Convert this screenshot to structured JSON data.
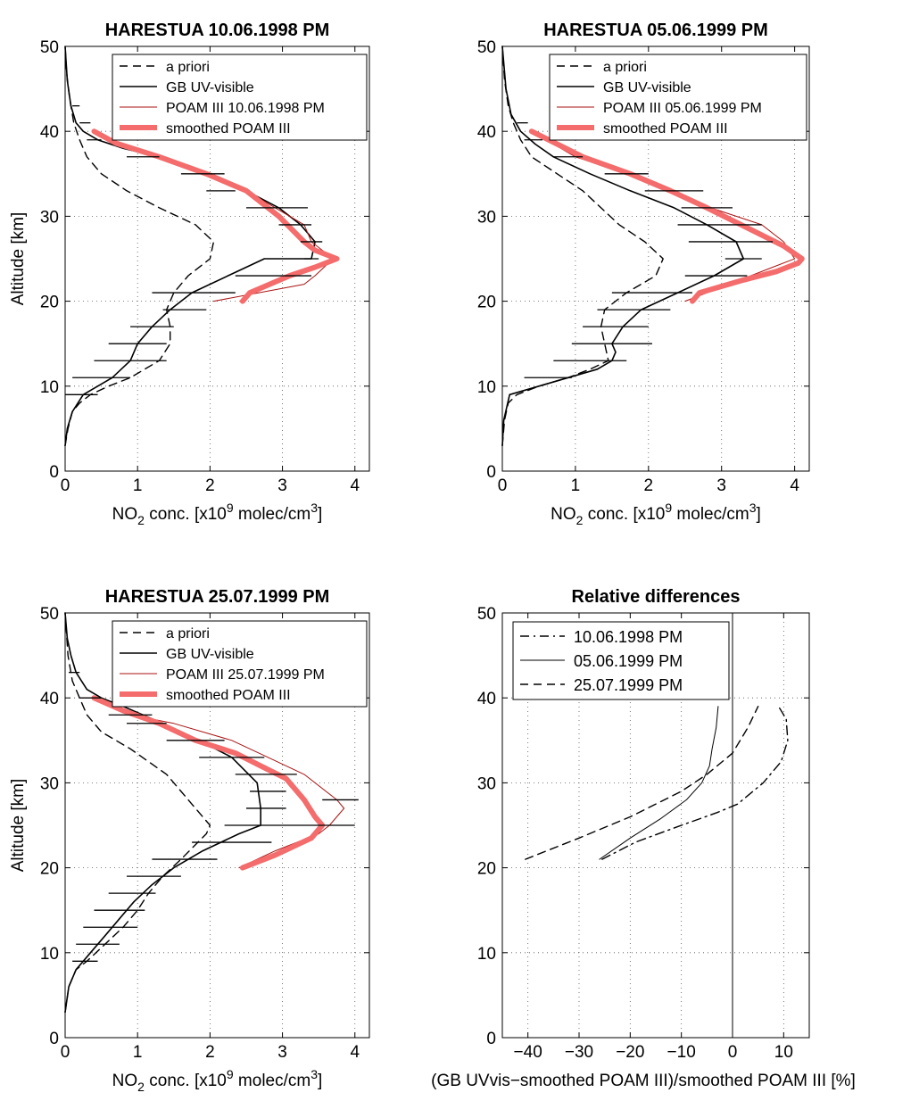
{
  "chart_data": [
    {
      "type": "line",
      "title": "HARESTUA 10.06.1998 PM",
      "xlabel": "NO2 conc. [x10^9 molec/cm^3]",
      "ylabel": "Altitude [km]",
      "xlim": [
        0,
        4.2
      ],
      "ylim": [
        0,
        50
      ],
      "xticks": [
        "0",
        "1",
        "2",
        "3",
        "4"
      ],
      "yticks": [
        "0",
        "10",
        "20",
        "30",
        "40",
        "50"
      ],
      "grid": true,
      "legend": "top-right",
      "series": [
        {
          "name": "a priori",
          "style": "dashed",
          "color": "#000000",
          "x": [
            0,
            0.04,
            0.1,
            0.2,
            0.35,
            0.6,
            0.9,
            1.3,
            1.45,
            1.45,
            1.4,
            1.5,
            1.7,
            2.0,
            2.05,
            1.8,
            1.3,
            0.85,
            0.5,
            0.3,
            0.2,
            0.12,
            0.06,
            0.02,
            0
          ],
          "y": [
            3,
            5,
            7,
            8,
            9,
            10,
            11,
            13,
            15,
            17,
            19,
            21,
            23,
            25,
            27,
            29,
            31,
            33,
            35,
            37,
            39,
            41,
            44,
            47,
            50
          ]
        },
        {
          "name": "GB UV-visible",
          "style": "solid",
          "color": "#000000",
          "x": [
            0,
            0.03,
            0.1,
            0.25,
            0.65,
            0.9,
            1.0,
            1.2,
            1.45,
            1.75,
            2.25,
            2.75,
            3.4,
            3.45,
            3.25,
            2.95,
            2.5,
            2.0,
            1.3,
            0.8,
            0.45,
            0.25,
            0.15,
            0.08,
            0.03,
            0
          ],
          "y": [
            3,
            5,
            7,
            9,
            11,
            13,
            15,
            17,
            19,
            21,
            23,
            25,
            25,
            27,
            29,
            31,
            33,
            35,
            37,
            38,
            39,
            40,
            41,
            43,
            46,
            50
          ]
        },
        {
          "name": "POAM III 10.06.1998 PM",
          "style": "solid-thin",
          "color": "#aa1111",
          "x": [
            2.05,
            3.3,
            3.45,
            3.7,
            3.4,
            3.35,
            3.3,
            2.9,
            2.5,
            2.0,
            1.3,
            0.6,
            0.4
          ],
          "y": [
            20,
            22,
            23,
            25,
            27,
            28,
            29,
            31,
            33,
            35,
            37,
            39,
            40
          ]
        },
        {
          "name": "smoothed POAM III",
          "style": "thick",
          "color": "#f46c6c",
          "x": [
            2.45,
            2.55,
            3.1,
            3.45,
            3.75,
            3.45,
            3.3,
            2.95,
            2.5,
            1.95,
            1.3,
            0.7,
            0.4
          ],
          "y": [
            20,
            21,
            23,
            24,
            25,
            26,
            27,
            30,
            33,
            35,
            37,
            38.6,
            40
          ]
        }
      ],
      "error_bars": [
        {
          "y": 9,
          "xmin": 0.0,
          "xmax": 0.45
        },
        {
          "y": 11,
          "xmin": 0.1,
          "xmax": 0.9
        },
        {
          "y": 13,
          "xmin": 0.4,
          "xmax": 1.4
        },
        {
          "y": 15,
          "xmin": 0.6,
          "xmax": 1.4
        },
        {
          "y": 17,
          "xmin": 0.9,
          "xmax": 1.5
        },
        {
          "y": 19,
          "xmin": 1.35,
          "xmax": 1.95
        },
        {
          "y": 21,
          "xmin": 1.2,
          "xmax": 2.35
        },
        {
          "y": 23,
          "xmin": 2.35,
          "xmax": 3.4
        },
        {
          "y": 25,
          "xmin": 3.3,
          "xmax": 3.5
        },
        {
          "y": 27,
          "xmin": 3.25,
          "xmax": 3.55
        },
        {
          "y": 29,
          "xmin": 2.95,
          "xmax": 3.4
        },
        {
          "y": 31,
          "xmin": 2.5,
          "xmax": 3.35
        },
        {
          "y": 33,
          "xmin": 1.95,
          "xmax": 2.35
        },
        {
          "y": 35,
          "xmin": 1.6,
          "xmax": 2.2
        },
        {
          "y": 37,
          "xmin": 0.85,
          "xmax": 1.3
        },
        {
          "y": 39,
          "xmin": 0.3,
          "xmax": 0.5
        },
        {
          "y": 41,
          "xmin": 0.2,
          "xmax": 0.35
        },
        {
          "y": 43,
          "xmin": 0.1,
          "xmax": 0.2
        }
      ]
    },
    {
      "type": "line",
      "title": "HARESTUA 05.06.1999 PM",
      "xlabel": "NO2 conc. [x10^9 molec/cm^3]",
      "ylabel": "",
      "xlim": [
        0,
        4.2
      ],
      "ylim": [
        0,
        50
      ],
      "xticks": [
        "0",
        "1",
        "2",
        "3",
        "4"
      ],
      "yticks": [
        "0",
        "10",
        "20",
        "30",
        "40",
        "50"
      ],
      "grid": true,
      "legend": "top-right",
      "series": [
        {
          "name": "a priori",
          "style": "dashed",
          "color": "#000000",
          "x": [
            0,
            0.03,
            0.08,
            0.2,
            0.5,
            0.9,
            1.2,
            1.45,
            1.4,
            1.35,
            1.4,
            1.7,
            2.1,
            2.2,
            1.95,
            1.6,
            1.1,
            0.75,
            0.4,
            0.25,
            0.15,
            0.08,
            0.03,
            0
          ],
          "y": [
            3,
            6,
            8,
            9,
            10,
            11,
            12,
            13,
            15,
            17,
            19,
            21,
            23,
            25,
            27,
            29,
            33,
            35,
            37,
            39,
            41,
            43,
            46,
            50
          ]
        },
        {
          "name": "GB UV-visible",
          "style": "solid",
          "color": "#000000",
          "x": [
            0,
            0.02,
            0.1,
            0.5,
            0.9,
            1.3,
            1.5,
            1.55,
            1.5,
            1.65,
            1.9,
            2.4,
            2.9,
            3.3,
            3.2,
            2.8,
            2.35,
            1.75,
            1.2,
            0.7,
            0.45,
            0.25,
            0.12,
            0.05,
            0
          ],
          "y": [
            3,
            6,
            9,
            10,
            11,
            12,
            13,
            14,
            15,
            17,
            19,
            21,
            23,
            25,
            27,
            29,
            31,
            33,
            35,
            37,
            38.5,
            40,
            42,
            45,
            50
          ]
        },
        {
          "name": "POAM III 05.06.1999 PM",
          "style": "solid-thin",
          "color": "#aa1111",
          "x": [
            2.5,
            3.1,
            3.7,
            4.0,
            3.85,
            3.55,
            3.2,
            2.5,
            1.7,
            1.0,
            0.4
          ],
          "y": [
            20,
            22,
            24,
            25,
            27,
            29,
            30,
            32,
            35,
            37,
            40
          ]
        },
        {
          "name": "smoothed POAM III",
          "style": "thick",
          "color": "#f46c6c",
          "x": [
            2.6,
            2.7,
            3.3,
            3.75,
            4.05,
            4.1,
            3.85,
            3.5,
            2.8,
            2.3,
            1.75,
            1.1,
            0.4
          ],
          "y": [
            20,
            21,
            22.5,
            23.5,
            24.5,
            25,
            26.5,
            28,
            31,
            33,
            35,
            37,
            40
          ]
        }
      ],
      "error_bars": [
        {
          "y": 11,
          "xmin": 0.3,
          "xmax": 0.95
        },
        {
          "y": 13,
          "xmin": 0.7,
          "xmax": 1.7
        },
        {
          "y": 15,
          "xmin": 0.95,
          "xmax": 2.05
        },
        {
          "y": 17,
          "xmin": 1.1,
          "xmax": 2.0
        },
        {
          "y": 19,
          "xmin": 1.3,
          "xmax": 2.3
        },
        {
          "y": 21,
          "xmin": 1.5,
          "xmax": 2.6
        },
        {
          "y": 23,
          "xmin": 2.5,
          "xmax": 3.35
        },
        {
          "y": 25,
          "xmin": 3.05,
          "xmax": 3.55
        },
        {
          "y": 27,
          "xmin": 2.55,
          "xmax": 3.7
        },
        {
          "y": 29,
          "xmin": 2.4,
          "xmax": 3.55
        },
        {
          "y": 31,
          "xmin": 2.45,
          "xmax": 3.15
        },
        {
          "y": 33,
          "xmin": 1.95,
          "xmax": 2.75
        },
        {
          "y": 35,
          "xmin": 1.4,
          "xmax": 2.0
        },
        {
          "y": 37,
          "xmin": 0.7,
          "xmax": 1.1
        },
        {
          "y": 39,
          "xmin": 0.3,
          "xmax": 0.55
        },
        {
          "y": 41,
          "xmin": 0.2,
          "xmax": 0.35
        }
      ]
    },
    {
      "type": "line",
      "title": "HARESTUA 25.07.1999 PM",
      "xlabel": "NO2 conc. [x10^9 molec/cm^3]",
      "ylabel": "Altitude [km]",
      "xlim": [
        0,
        4.2
      ],
      "ylim": [
        0,
        50
      ],
      "xticks": [
        "0",
        "1",
        "2",
        "3",
        "4"
      ],
      "yticks": [
        "0",
        "10",
        "20",
        "30",
        "40",
        "50"
      ],
      "grid": true,
      "legend": "top-right",
      "series": [
        {
          "name": "a priori",
          "style": "dashed",
          "color": "#000000",
          "x": [
            0,
            0.05,
            0.15,
            0.3,
            0.55,
            0.8,
            1.0,
            1.15,
            1.35,
            1.6,
            1.95,
            2.0,
            1.8,
            1.4,
            0.9,
            0.5,
            0.3,
            0.2,
            0.1,
            0.04,
            0
          ],
          "y": [
            3,
            6,
            8,
            9,
            11,
            13,
            15,
            17,
            19,
            21,
            24,
            25,
            27,
            31,
            34,
            36,
            38,
            40,
            42,
            45,
            50
          ]
        },
        {
          "name": "GB UV-visible",
          "style": "solid",
          "color": "#000000",
          "x": [
            0,
            0.05,
            0.15,
            0.35,
            0.55,
            0.75,
            0.95,
            1.2,
            1.5,
            1.9,
            2.4,
            2.7,
            2.7,
            2.65,
            2.3,
            1.85,
            1.35,
            0.8,
            0.5,
            0.3,
            0.15,
            0.08,
            0.03,
            0
          ],
          "y": [
            3,
            6,
            8,
            10,
            12,
            14,
            16,
            18,
            20,
            22,
            24,
            25,
            27,
            30,
            33,
            35,
            37,
            39,
            40,
            41,
            43,
            45,
            47,
            50
          ]
        },
        {
          "name": "POAM III 25.07.1999 PM",
          "style": "solid-thin",
          "color": "#aa1111",
          "x": [
            2.4,
            2.9,
            3.5,
            3.65,
            3.85,
            3.75,
            3.3,
            2.8,
            2.3,
            1.5,
            0.9,
            0.4
          ],
          "y": [
            20,
            22,
            24,
            25,
            27,
            28,
            31,
            33,
            35,
            37,
            38,
            40
          ]
        },
        {
          "name": "smoothed POAM III",
          "style": "thick",
          "color": "#f46c6c",
          "x": [
            2.45,
            2.9,
            3.4,
            3.55,
            3.45,
            3.3,
            3.05,
            2.7,
            2.35,
            1.8,
            1.3,
            0.8,
            0.4
          ],
          "y": [
            20,
            21.5,
            23.5,
            25,
            26,
            28,
            30.5,
            32,
            33.5,
            35,
            37,
            38.5,
            40
          ]
        }
      ],
      "error_bars": [
        {
          "y": 9,
          "xmin": 0.1,
          "xmax": 0.45
        },
        {
          "y": 11,
          "xmin": 0.15,
          "xmax": 0.75
        },
        {
          "y": 13,
          "xmin": 0.25,
          "xmax": 1.0
        },
        {
          "y": 15,
          "xmin": 0.4,
          "xmax": 1.1
        },
        {
          "y": 17,
          "xmin": 0.6,
          "xmax": 1.25
        },
        {
          "y": 19,
          "xmin": 0.85,
          "xmax": 1.6
        },
        {
          "y": 21,
          "xmin": 1.2,
          "xmax": 2.1
        },
        {
          "y": 23,
          "xmin": 1.75,
          "xmax": 2.85
        },
        {
          "y": 25,
          "xmin": 2.2,
          "xmax": 4.0
        },
        {
          "y": 27,
          "xmin": 2.5,
          "xmax": 3.05
        },
        {
          "y": 28,
          "xmin": 3.55,
          "xmax": 4.05
        },
        {
          "y": 29,
          "xmin": 2.55,
          "xmax": 3.05
        },
        {
          "y": 31,
          "xmin": 2.35,
          "xmax": 3.2
        },
        {
          "y": 33,
          "xmin": 1.85,
          "xmax": 2.75
        },
        {
          "y": 35,
          "xmin": 1.4,
          "xmax": 2.2
        },
        {
          "y": 37,
          "xmin": 0.85,
          "xmax": 1.4
        },
        {
          "y": 38,
          "xmin": 0.6,
          "xmax": 1.2
        },
        {
          "y": 40,
          "xmin": 0.2,
          "xmax": 0.5
        },
        {
          "y": 43,
          "xmin": 0.05,
          "xmax": 0.2
        }
      ]
    },
    {
      "type": "line",
      "title": "Relative differences",
      "xlabel": "(GB UVvis−smoothed POAM III)/smoothed POAM III [%]",
      "ylabel": "",
      "xlim": [
        -45,
        15
      ],
      "ylim": [
        0,
        50
      ],
      "xticks": [
        "−40",
        "−30",
        "−20",
        "−10",
        "0",
        "10"
      ],
      "yticks": [
        "0",
        "10",
        "20",
        "30",
        "40",
        "50"
      ],
      "grid": true,
      "legend": "top-left",
      "zero_line": true,
      "series": [
        {
          "name": "10.06.1998 PM",
          "style": "dashdot",
          "color": "#000000",
          "x": [
            -25.5,
            -19,
            -10,
            -3,
            1,
            6,
            9.5,
            10.8,
            10.5,
            9
          ],
          "y": [
            21,
            23,
            25,
            26.5,
            27.5,
            30,
            32.5,
            35,
            37.5,
            39
          ]
        },
        {
          "name": "05.06.1999 PM",
          "style": "solid-thin",
          "color": "#000000",
          "x": [
            -26,
            -20,
            -14,
            -9,
            -6,
            -4.5,
            -4,
            -3.2,
            -2.8
          ],
          "y": [
            21,
            23.5,
            25.8,
            28,
            30,
            32,
            34,
            36.5,
            39
          ]
        },
        {
          "name": "25.07.1999 PM",
          "style": "dashed",
          "color": "#000000",
          "x": [
            -40.5,
            -30,
            -20,
            -10,
            -5,
            0,
            3,
            5
          ],
          "y": [
            21,
            23.5,
            26,
            29,
            31,
            33.5,
            36.5,
            39
          ]
        }
      ]
    }
  ]
}
